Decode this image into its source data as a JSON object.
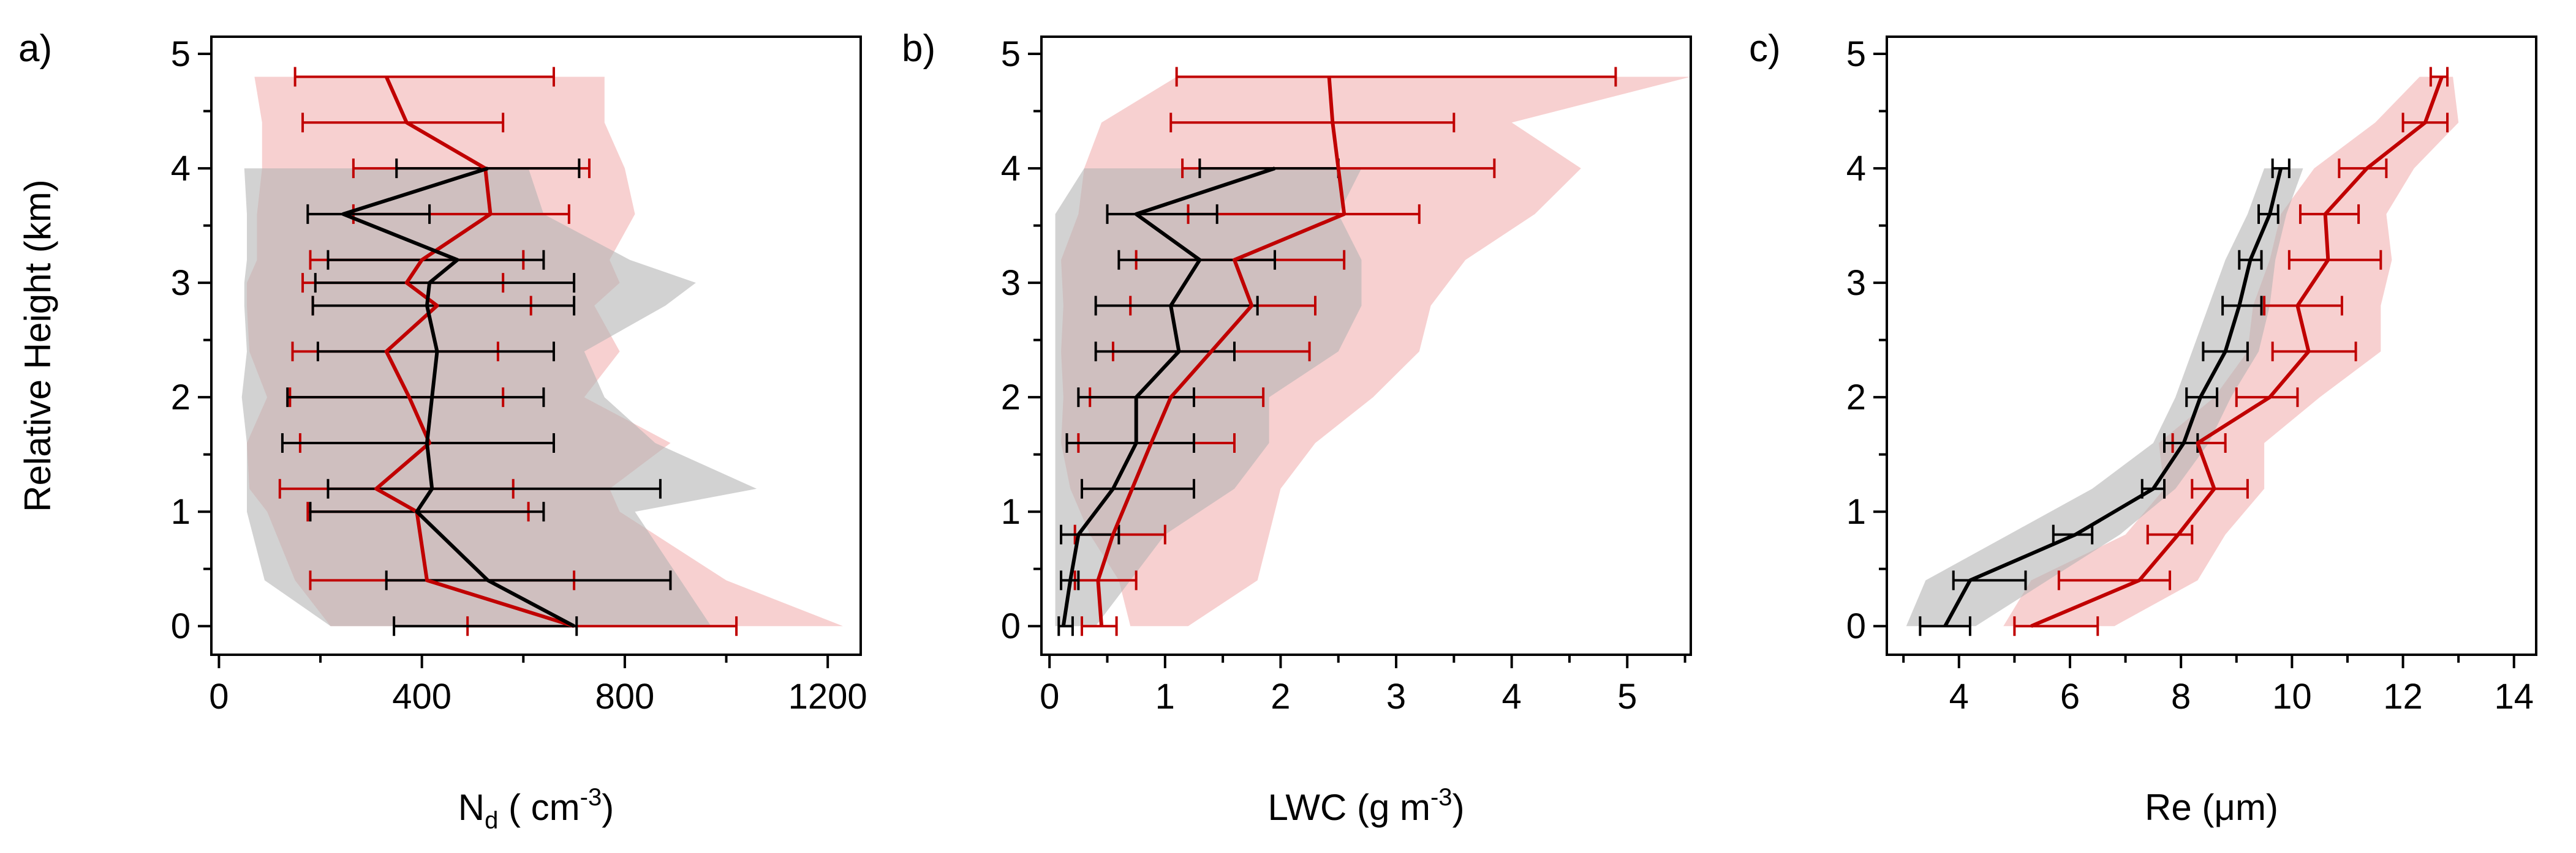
{
  "colors": {
    "black_series": "#000000",
    "red_series": "#c00000",
    "black_band": "#b4b4b4",
    "red_band": "#f0aaaa"
  },
  "chart_data": [
    {
      "type": "line",
      "panel_label": "a)",
      "xlabel": "N",
      "xlabel_sub": "d",
      "xlabel_unit_prefix": " ( cm",
      "xlabel_sup": "-3",
      "xlabel_unit_suffix": ")",
      "ylabel": "Relative Height (km)",
      "xlim": [
        -15,
        1265
      ],
      "ylim": [
        -0.25,
        5.15
      ],
      "xticks": [
        0,
        400,
        800,
        1200
      ],
      "xtick_labels": [
        "0",
        "400",
        "800",
        "1200"
      ],
      "yticks": [
        0,
        1,
        2,
        3,
        4,
        5
      ],
      "ytick_labels": [
        "0",
        "1",
        "2",
        "3",
        "4",
        "5"
      ],
      "series": [
        {
          "color": "red",
          "y": [
            0,
            0.4,
            1,
            1.2,
            1.6,
            2,
            2.4,
            2.8,
            3,
            3.2,
            3.6,
            4,
            4.4,
            4.8
          ],
          "mean": [
            700,
            410,
            390,
            310,
            415,
            375,
            330,
            430,
            370,
            400,
            535,
            525,
            370,
            330
          ],
          "err_lo": [
            490,
            180,
            175,
            120,
            160,
            140,
            145,
            185,
            165,
            180,
            265,
            265,
            165,
            150
          ],
          "err_hi": [
            1020,
            700,
            610,
            580,
            660,
            560,
            550,
            615,
            560,
            600,
            690,
            730,
            560,
            660
          ],
          "band_y": [
            0,
            0.4,
            1,
            1.2,
            1.6,
            2,
            2.4,
            2.8,
            3,
            3.2,
            3.6,
            4,
            4.4,
            4.8
          ],
          "band_lo": [
            220,
            150,
            95,
            60,
            55,
            95,
            60,
            55,
            55,
            75,
            75,
            85,
            85,
            70
          ],
          "band_hi": [
            1230,
            1000,
            790,
            770,
            890,
            720,
            790,
            740,
            790,
            770,
            820,
            800,
            760,
            760
          ]
        },
        {
          "color": "black",
          "y": [
            0,
            0.4,
            1,
            1.2,
            1.6,
            2,
            2.4,
            2.8,
            3,
            3.2,
            3.6,
            4
          ],
          "mean": [
            700,
            530,
            390,
            420,
            410,
            420,
            430,
            410,
            415,
            470,
            245,
            530
          ],
          "err_lo": [
            345,
            330,
            180,
            215,
            125,
            135,
            195,
            185,
            190,
            215,
            175,
            350
          ],
          "err_hi": [
            705,
            890,
            640,
            870,
            660,
            640,
            660,
            700,
            700,
            640,
            415,
            710
          ],
          "band_y": [
            0,
            0.4,
            1,
            1.2,
            1.6,
            2,
            2.4,
            2.8,
            3,
            3.2,
            3.6,
            4
          ],
          "band_lo": [
            220,
            90,
            55,
            55,
            55,
            45,
            55,
            50,
            50,
            55,
            55,
            50
          ],
          "band_hi": [
            970,
            910,
            820,
            1060,
            860,
            760,
            720,
            880,
            940,
            810,
            640,
            610
          ]
        }
      ]
    },
    {
      "type": "line",
      "panel_label": "b)",
      "xlabel": "LWC (g m",
      "xlabel_sup": "-3",
      "xlabel_unit_suffix": ")",
      "xlim": [
        -0.07,
        5.55
      ],
      "ylim": [
        -0.25,
        5.15
      ],
      "xticks": [
        0,
        1,
        2,
        3,
        4,
        5
      ],
      "xtick_labels": [
        "0",
        "1",
        "2",
        "3",
        "4",
        "5"
      ],
      "yticks": [
        0,
        1,
        2,
        3,
        4,
        5
      ],
      "ytick_labels": [
        "0",
        "1",
        "2",
        "3",
        "4",
        "5"
      ],
      "series": [
        {
          "color": "red",
          "y": [
            0,
            0.4,
            0.8,
            1.6,
            2,
            2.4,
            2.8,
            3.2,
            3.6,
            4,
            4.4,
            4.8
          ],
          "mean": [
            0.45,
            0.42,
            0.55,
            0.88,
            1.05,
            1.4,
            1.75,
            1.6,
            2.55,
            2.5,
            2.45,
            2.42
          ],
          "err_lo": [
            0.28,
            0.22,
            0.22,
            0.25,
            0.35,
            0.55,
            0.7,
            0.75,
            1.2,
            1.15,
            1.05,
            1.1
          ],
          "err_hi": [
            0.58,
            0.75,
            1.0,
            1.6,
            1.85,
            2.25,
            2.3,
            2.55,
            3.2,
            3.85,
            3.5,
            4.9
          ],
          "band_y": [
            0,
            0.4,
            0.8,
            1.2,
            1.6,
            2,
            2.4,
            2.8,
            3.2,
            3.6,
            4,
            4.4,
            4.8
          ],
          "band_lo": [
            0.7,
            0.6,
            0.35,
            0.18,
            0.1,
            0.12,
            0.1,
            0.12,
            0.1,
            0.25,
            0.3,
            0.45,
            1.1
          ],
          "band_hi": [
            1.2,
            1.8,
            1.9,
            2.0,
            2.3,
            2.8,
            3.2,
            3.3,
            3.6,
            4.2,
            4.6,
            4.0,
            5.55
          ]
        },
        {
          "color": "black",
          "y": [
            0,
            0.4,
            0.8,
            1.2,
            1.6,
            2,
            2.4,
            2.8,
            3.2,
            3.6,
            4
          ],
          "mean": [
            0.12,
            0.18,
            0.25,
            0.55,
            0.75,
            0.75,
            1.12,
            1.05,
            1.3,
            0.75,
            1.95
          ],
          "err_lo": [
            0.08,
            0.1,
            0.1,
            0.28,
            0.15,
            0.25,
            0.4,
            0.4,
            0.6,
            0.5,
            1.3
          ],
          "err_hi": [
            0.2,
            0.25,
            0.6,
            1.25,
            1.25,
            1.25,
            1.6,
            1.8,
            1.95,
            1.45,
            2.5
          ],
          "band_y": [
            0,
            0.4,
            0.8,
            1.2,
            1.6,
            2,
            2.4,
            2.8,
            3.2,
            3.6,
            4
          ],
          "band_lo": [
            0.05,
            0.05,
            0.05,
            0.05,
            0.05,
            0.05,
            0.05,
            0.05,
            0.05,
            0.05,
            0.3
          ],
          "band_hi": [
            0.4,
            0.7,
            1.0,
            1.6,
            1.9,
            1.9,
            2.5,
            2.7,
            2.7,
            2.5,
            2.7
          ]
        }
      ]
    },
    {
      "type": "line",
      "panel_label": "c)",
      "xlabel": "Re (μm)",
      "xlim": [
        2.7,
        14.4
      ],
      "ylim": [
        -0.25,
        5.15
      ],
      "xticks": [
        4,
        6,
        8,
        10,
        12,
        14
      ],
      "xtick_labels": [
        "4",
        "6",
        "8",
        "10",
        "12",
        "14"
      ],
      "yticks": [
        0,
        1,
        2,
        3,
        4,
        5
      ],
      "ytick_labels": [
        "0",
        "1",
        "2",
        "3",
        "4",
        "5"
      ],
      "series": [
        {
          "color": "red",
          "y": [
            0,
            0.4,
            0.8,
            1.2,
            1.6,
            2,
            2.4,
            2.8,
            3.2,
            3.6,
            4,
            4.4,
            4.8
          ],
          "mean": [
            5.3,
            7.25,
            7.95,
            8.6,
            8.3,
            9.6,
            10.3,
            10.1,
            10.65,
            10.6,
            11.35,
            12.4,
            12.7
          ],
          "err_lo": [
            5.0,
            5.8,
            7.4,
            8.2,
            7.85,
            9.0,
            9.65,
            9.5,
            9.95,
            10.15,
            10.85,
            12.0,
            12.5
          ],
          "err_hi": [
            6.5,
            7.8,
            8.2,
            9.2,
            8.8,
            10.1,
            11.15,
            10.9,
            11.6,
            11.2,
            11.7,
            12.8,
            12.8
          ],
          "band_y": [
            0,
            0.4,
            0.8,
            1.2,
            1.6,
            2,
            2.4,
            2.8,
            3.2,
            3.6,
            4,
            4.4,
            4.8
          ],
          "band_lo": [
            4.8,
            5.3,
            7.0,
            7.7,
            7.6,
            8.6,
            9.2,
            9.3,
            9.6,
            9.8,
            10.4,
            11.5,
            12.3
          ],
          "band_hi": [
            6.8,
            8.3,
            8.8,
            9.5,
            9.5,
            10.5,
            11.6,
            11.6,
            11.8,
            11.7,
            12.2,
            13.0,
            12.9
          ]
        },
        {
          "color": "black",
          "y": [
            0,
            0.4,
            0.8,
            1.2,
            1.6,
            2,
            2.4,
            2.8,
            3.2,
            3.6,
            4
          ],
          "mean": [
            3.75,
            4.2,
            6.1,
            7.5,
            8.05,
            8.35,
            8.8,
            9.05,
            9.25,
            9.6,
            9.8
          ],
          "err_lo": [
            3.3,
            3.9,
            5.7,
            7.3,
            7.7,
            8.1,
            8.4,
            8.75,
            9.05,
            9.4,
            9.65
          ],
          "err_hi": [
            4.2,
            5.2,
            6.4,
            7.7,
            8.3,
            8.65,
            9.2,
            9.45,
            9.45,
            9.75,
            9.95
          ],
          "band_y": [
            0,
            0.4,
            0.8,
            1.2,
            1.6,
            2,
            2.4,
            2.8,
            3.2,
            3.6,
            4
          ],
          "band_lo": [
            3.05,
            3.4,
            4.9,
            6.4,
            7.5,
            7.9,
            8.2,
            8.5,
            8.8,
            9.2,
            9.5
          ],
          "band_hi": [
            4.3,
            5.6,
            6.9,
            7.9,
            8.5,
            8.9,
            9.4,
            9.6,
            9.7,
            9.9,
            10.2
          ]
        }
      ]
    }
  ]
}
